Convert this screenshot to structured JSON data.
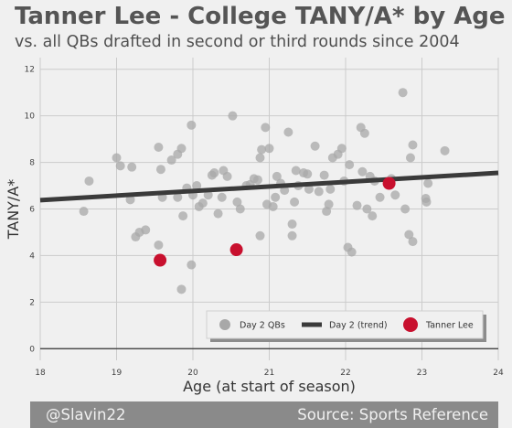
{
  "chart_data": {
    "type": "scatter",
    "title": "Tanner Lee - College TANY/A* by Age",
    "subtitle": "vs. all QBs drafted in second or third rounds since 2004",
    "xlabel": "Age (at start of season)",
    "ylabel": "TANY/A*",
    "xlim": [
      18,
      24
    ],
    "ylim": [
      -0.5,
      12.5
    ],
    "xticks": [
      "18",
      "19",
      "20",
      "21",
      "22",
      "23",
      "24"
    ],
    "yticks": [
      "0",
      "2",
      "4",
      "6",
      "8",
      "10",
      "12"
    ],
    "grid": true,
    "legend_position": "bottom-right",
    "colors": {
      "day2": "#a8a8a8",
      "trend": "#3a3a3a",
      "tanner": "#c8102e"
    },
    "series": [
      {
        "name": "Day 2 QBs",
        "kind": "scatter",
        "points": [
          [
            18.57,
            5.9
          ],
          [
            18.64,
            7.2
          ],
          [
            19.0,
            8.2
          ],
          [
            19.05,
            7.85
          ],
          [
            19.2,
            7.8
          ],
          [
            19.18,
            6.4
          ],
          [
            19.25,
            4.8
          ],
          [
            19.3,
            5.0
          ],
          [
            19.38,
            5.1
          ],
          [
            19.55,
            8.65
          ],
          [
            19.58,
            7.7
          ],
          [
            19.6,
            6.5
          ],
          [
            19.55,
            4.45
          ],
          [
            19.72,
            8.1
          ],
          [
            19.8,
            8.35
          ],
          [
            19.8,
            6.5
          ],
          [
            19.85,
            8.6
          ],
          [
            19.87,
            5.7
          ],
          [
            19.92,
            6.9
          ],
          [
            19.98,
            9.6
          ],
          [
            20.0,
            6.6
          ],
          [
            20.08,
            6.1
          ],
          [
            20.13,
            6.25
          ],
          [
            20.05,
            7.0
          ],
          [
            19.85,
            2.55
          ],
          [
            19.98,
            3.6
          ],
          [
            20.2,
            6.6
          ],
          [
            20.25,
            7.45
          ],
          [
            20.28,
            7.55
          ],
          [
            20.33,
            5.8
          ],
          [
            20.38,
            6.5
          ],
          [
            20.4,
            7.65
          ],
          [
            20.45,
            7.4
          ],
          [
            20.52,
            10.0
          ],
          [
            20.58,
            6.3
          ],
          [
            20.62,
            6.0
          ],
          [
            20.7,
            7.0
          ],
          [
            20.75,
            7.05
          ],
          [
            20.8,
            7.3
          ],
          [
            20.85,
            7.25
          ],
          [
            20.88,
            8.2
          ],
          [
            20.9,
            8.55
          ],
          [
            20.95,
            9.5
          ],
          [
            20.97,
            6.2
          ],
          [
            20.88,
            4.85
          ],
          [
            21.0,
            8.6
          ],
          [
            21.05,
            6.1
          ],
          [
            21.08,
            6.5
          ],
          [
            21.1,
            7.4
          ],
          [
            21.15,
            7.1
          ],
          [
            21.2,
            6.8
          ],
          [
            21.25,
            9.3
          ],
          [
            21.3,
            5.35
          ],
          [
            21.3,
            4.85
          ],
          [
            21.33,
            6.3
          ],
          [
            21.35,
            7.65
          ],
          [
            21.38,
            7.0
          ],
          [
            21.45,
            7.55
          ],
          [
            21.5,
            7.5
          ],
          [
            21.52,
            6.85
          ],
          [
            21.6,
            8.7
          ],
          [
            21.65,
            6.75
          ],
          [
            21.72,
            7.45
          ],
          [
            21.75,
            5.9
          ],
          [
            21.78,
            6.2
          ],
          [
            21.8,
            6.85
          ],
          [
            21.83,
            8.2
          ],
          [
            21.9,
            8.35
          ],
          [
            21.95,
            8.6
          ],
          [
            21.98,
            7.2
          ],
          [
            22.03,
            4.35
          ],
          [
            22.08,
            4.15
          ],
          [
            22.05,
            7.9
          ],
          [
            22.15,
            6.15
          ],
          [
            22.2,
            9.5
          ],
          [
            22.25,
            9.25
          ],
          [
            22.22,
            7.6
          ],
          [
            22.28,
            6.0
          ],
          [
            22.32,
            7.4
          ],
          [
            22.35,
            5.7
          ],
          [
            22.38,
            7.2
          ],
          [
            22.45,
            6.5
          ],
          [
            22.6,
            7.3
          ],
          [
            22.65,
            6.6
          ],
          [
            22.75,
            11.0
          ],
          [
            22.78,
            6.0
          ],
          [
            22.83,
            4.9
          ],
          [
            22.85,
            8.2
          ],
          [
            22.88,
            4.6
          ],
          [
            22.88,
            8.75
          ],
          [
            23.05,
            6.45
          ],
          [
            23.06,
            6.3
          ],
          [
            23.08,
            7.1
          ],
          [
            23.3,
            8.5
          ]
        ]
      },
      {
        "name": "Day 2 (trend)",
        "kind": "line",
        "x": [
          18,
          24
        ],
        "y": [
          6.38,
          7.55
        ]
      },
      {
        "name": "Tanner Lee",
        "kind": "scatter",
        "points": [
          [
            19.57,
            3.8
          ],
          [
            20.57,
            4.25
          ],
          [
            22.57,
            7.1
          ]
        ]
      }
    ]
  },
  "footer": {
    "left": "@Slavin22",
    "right": "Source: Sports Reference"
  }
}
